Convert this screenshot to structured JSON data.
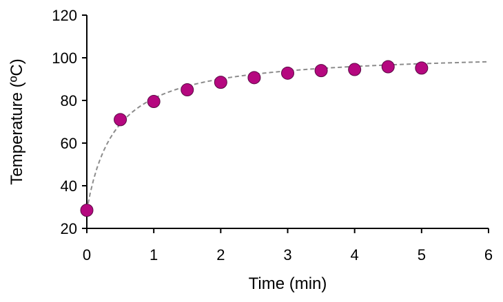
{
  "chart_data": {
    "type": "scatter",
    "title": "",
    "xlabel": "Time (min)",
    "ylabel": "Temperature (ºC)",
    "xlim": [
      0,
      6
    ],
    "ylim": [
      20,
      120
    ],
    "xticks": [
      "0",
      "1",
      "2",
      "3",
      "4",
      "5",
      "6"
    ],
    "yticks": [
      "20",
      "40",
      "60",
      "80",
      "100",
      "120"
    ],
    "grid": false,
    "legend": "none",
    "series": [
      {
        "x": [
          0,
          0.5,
          1,
          1.5,
          2,
          2.5,
          3,
          3.5,
          4,
          4.5,
          5
        ],
        "y": [
          28.5,
          71,
          79.5,
          85,
          88.5,
          90.7,
          92.8,
          94,
          94.5,
          95.8,
          95.2
        ],
        "marker_color": "#b5087f"
      }
    ],
    "fit_curve": {
      "style": "dashed",
      "color": "#8c8c8c",
      "model": "y = y0 + (ymax - y0) * t / (k + t)",
      "y0": 28.5,
      "ymax": 103,
      "k": 0.42,
      "x_range": [
        0,
        6
      ]
    }
  }
}
